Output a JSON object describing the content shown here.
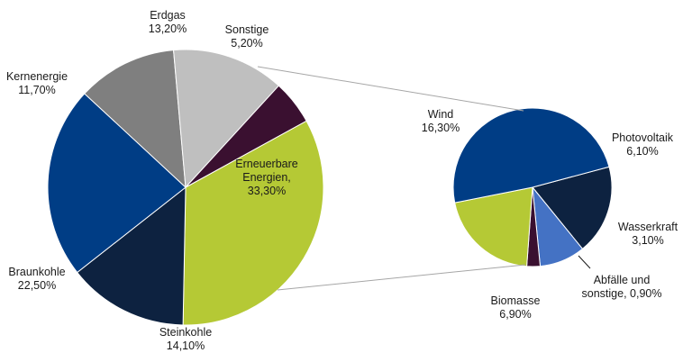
{
  "chart_data": {
    "type": "pie",
    "main_pie": {
      "slices": [
        {
          "label": "Erneuerbare Energien, 33,30%",
          "lines": [
            "Erneuerbare",
            "Energien,",
            "33,30%"
          ],
          "value": 33.3,
          "color": "#b5c935"
        },
        {
          "label": "Steinkohle 14,10%",
          "lines": [
            "Steinkohle",
            "14,10%"
          ],
          "value": 14.1,
          "color": "#0d2240"
        },
        {
          "label": "Braunkohle 22,50%",
          "lines": [
            "Braunkohle",
            "22,50%"
          ],
          "value": 22.5,
          "color": "#003d85"
        },
        {
          "label": "Kernenergie 11,70%",
          "lines": [
            "Kernenergie",
            "11,70%"
          ],
          "value": 11.7,
          "color": "#7f7f7f"
        },
        {
          "label": "Erdgas 13,20%",
          "lines": [
            "Erdgas",
            "13,20%"
          ],
          "value": 13.2,
          "color": "#bfbfbf"
        },
        {
          "label": "Sonstige 5,20%",
          "lines": [
            "Sonstige",
            "5,20%"
          ],
          "value": 5.2,
          "color": "#3a1030"
        }
      ]
    },
    "detail_pie": {
      "parent": "Erneuerbare Energien",
      "slices": [
        {
          "label": "Photovoltaik 6,10%",
          "lines": [
            "Photovoltaik",
            "6,10%"
          ],
          "value": 6.1,
          "color": "#0d2240"
        },
        {
          "label": "Wasserkraft 3,10%",
          "lines": [
            "Wasserkraft",
            "3,10%"
          ],
          "value": 3.1,
          "color": "#4472c4"
        },
        {
          "label": "Abfälle und sonstige, 0,90%",
          "lines": [
            "Abfälle und",
            "sonstige, 0,90%"
          ],
          "value": 0.9,
          "color": "#3a1030"
        },
        {
          "label": "Biomasse 6,90%",
          "lines": [
            "Biomasse",
            "6,90%"
          ],
          "value": 6.9,
          "color": "#b5c935"
        },
        {
          "label": "Wind 16,30%",
          "lines": [
            "Wind",
            "16,30%"
          ],
          "value": 16.3,
          "color": "#003d85"
        }
      ]
    }
  }
}
